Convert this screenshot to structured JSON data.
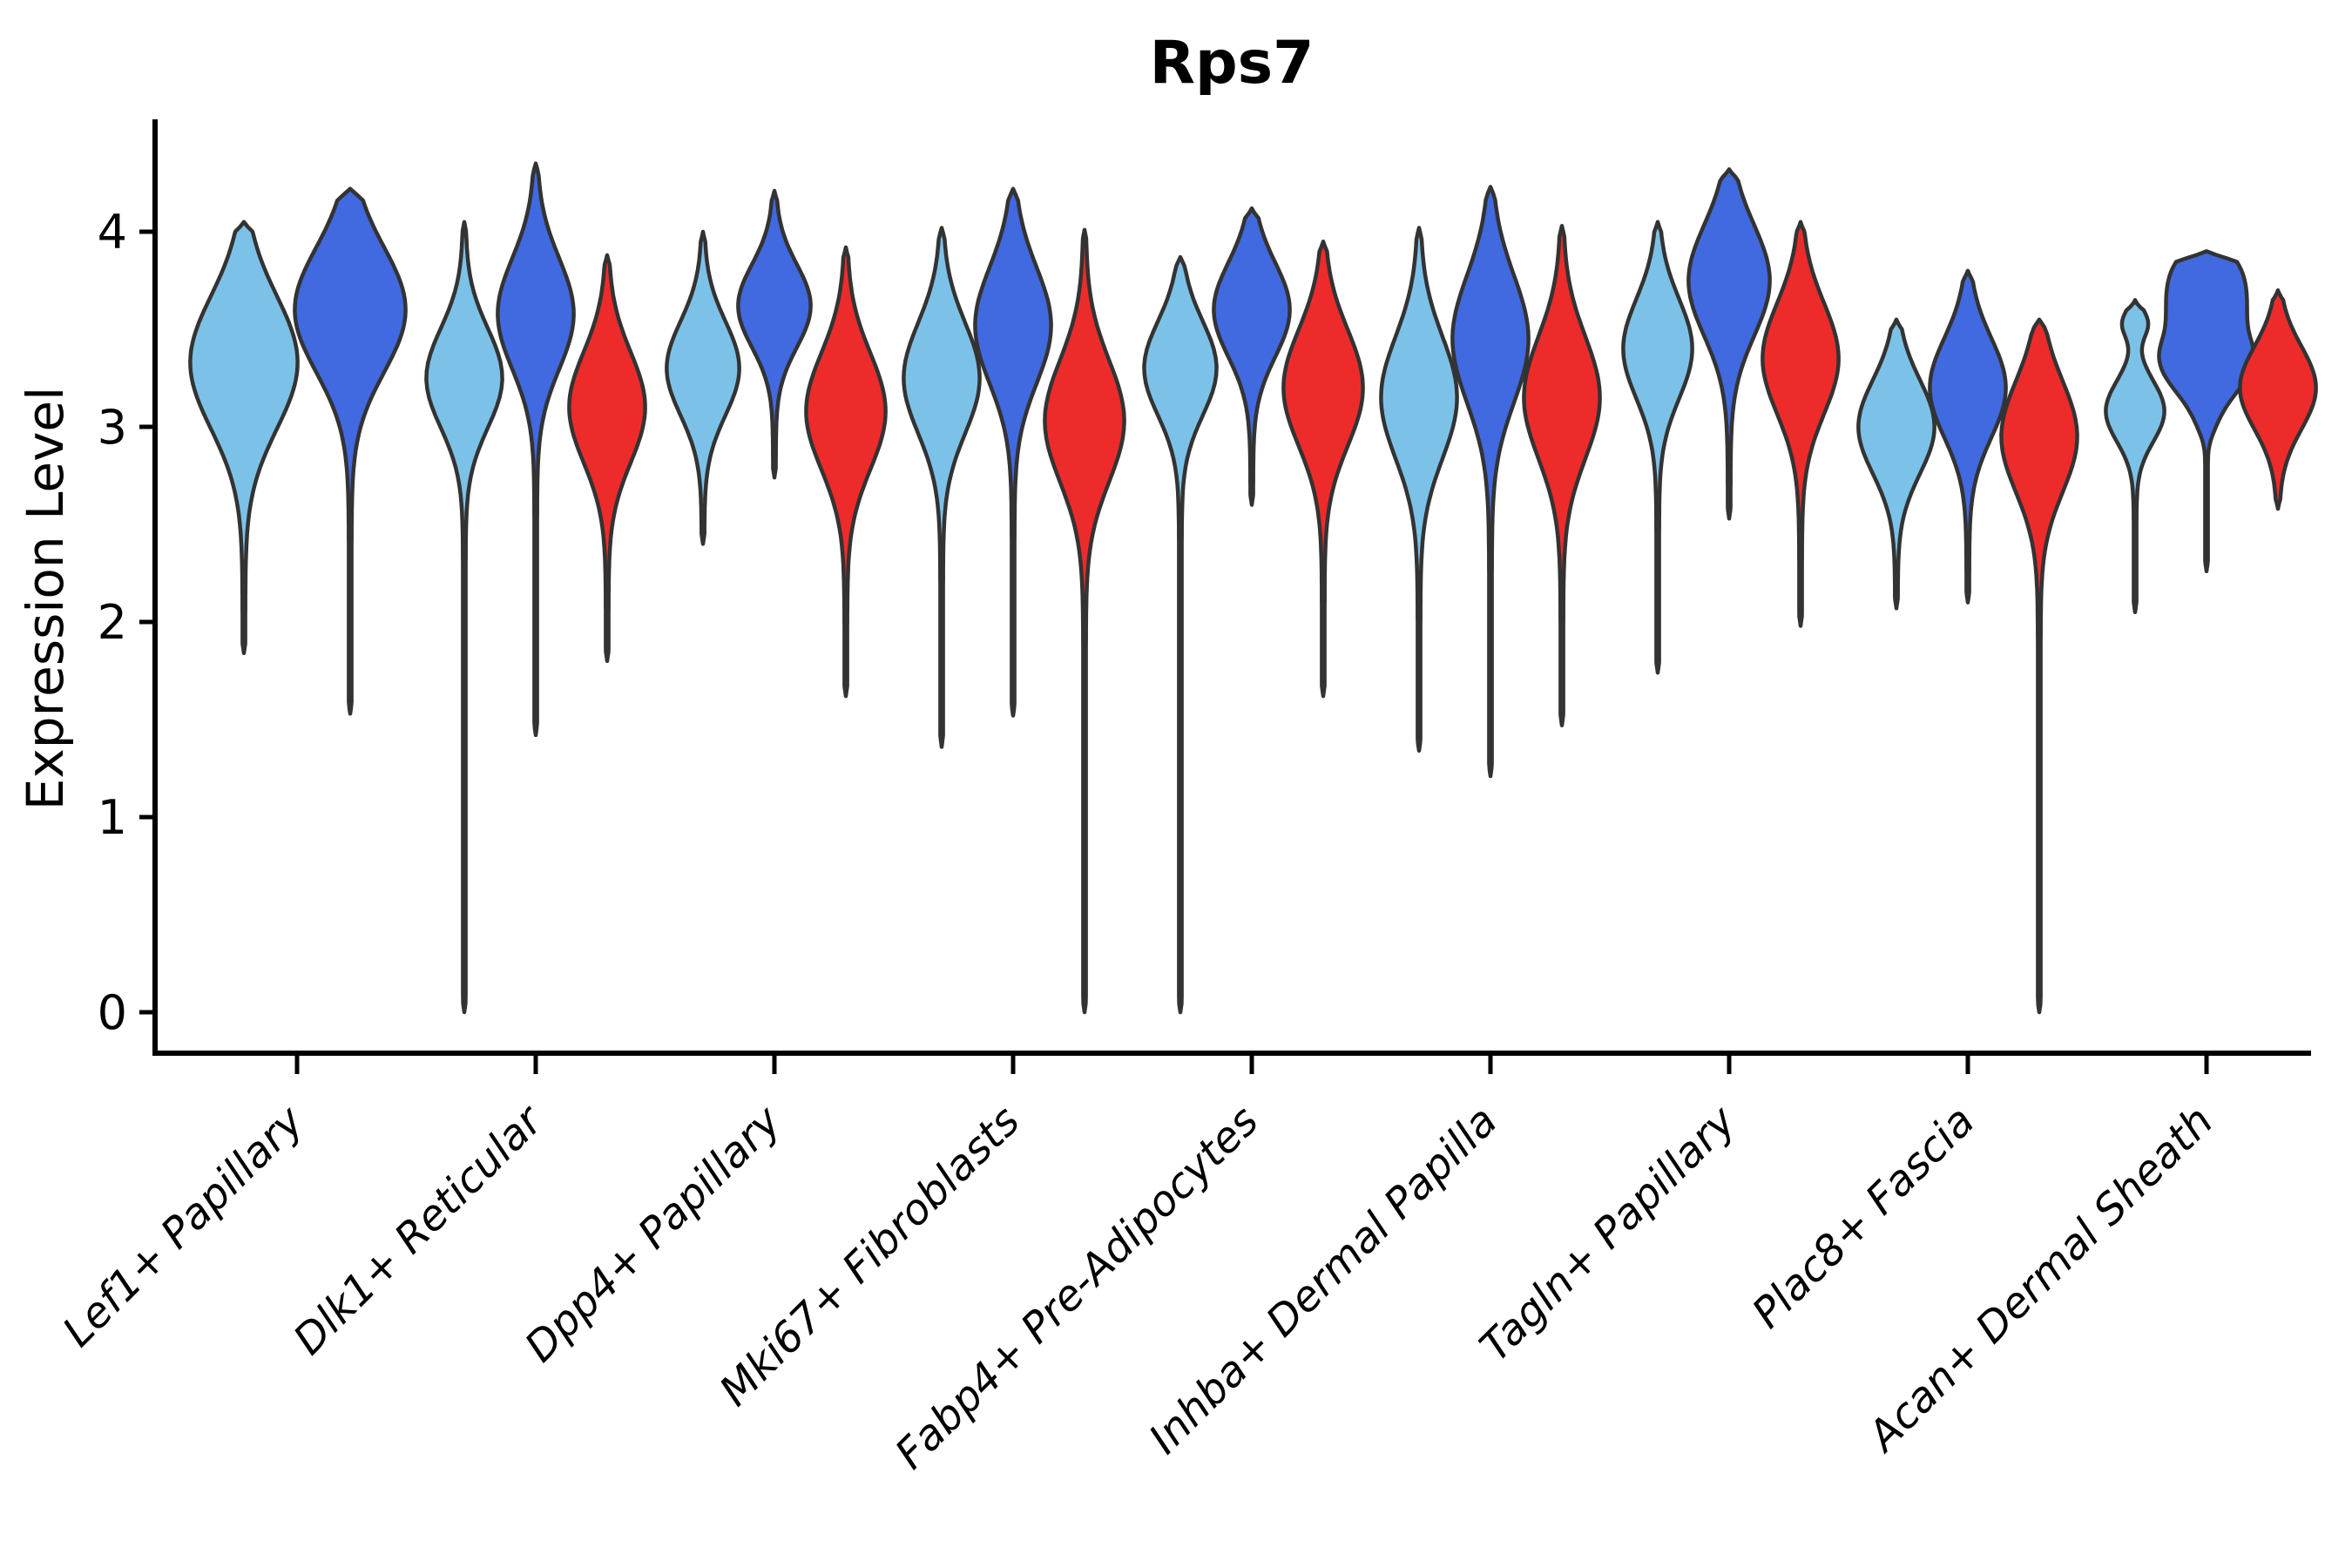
{
  "chart_data": {
    "type": "violin",
    "title": "Rps7",
    "ylabel": "Expression Level",
    "xlabel": "",
    "y_ticks": [
      0,
      1,
      2,
      3,
      4
    ],
    "ylim": [
      -0.2,
      4.45
    ],
    "grid": false,
    "legend_position": "none",
    "colors": {
      "light_blue": "#7CC2E8",
      "dark_blue": "#4169E0",
      "red": "#EE2B2B",
      "outline": "#333333",
      "axis": "#000000"
    },
    "categories": [
      "Lef1+ Papillary",
      "Dlk1+ Reticular",
      "Dpp4+ Papillary",
      "Mki67+ Fibroblasts",
      "Fabp4+ Pre-Adipocytes",
      "Inhba+ Dermal Papilla",
      "Tagln+ Papillary",
      "Plac8+ Fascia",
      "Acan+ Dermal Sheath"
    ],
    "violins": [
      {
        "category": 0,
        "series": "light_blue",
        "max": 4.05,
        "min": 1.84,
        "bumps": [
          {
            "v": 3.33,
            "s": 0.48,
            "w": 60
          }
        ]
      },
      {
        "category": 0,
        "series": "dark_blue",
        "max": 4.22,
        "min": 1.53,
        "bumps": [
          {
            "v": 3.6,
            "s": 0.45,
            "w": 62
          }
        ]
      },
      {
        "category": 1,
        "series": "light_blue",
        "max": 4.05,
        "min": 0.0,
        "bumps": [
          {
            "v": 3.25,
            "s": 0.36,
            "w": 42
          }
        ]
      },
      {
        "category": 1,
        "series": "dark_blue",
        "max": 4.35,
        "min": 1.42,
        "bumps": [
          {
            "v": 3.58,
            "s": 0.4,
            "w": 42
          }
        ]
      },
      {
        "category": 1,
        "series": "red",
        "max": 3.88,
        "min": 1.8,
        "bumps": [
          {
            "v": 3.1,
            "s": 0.4,
            "w": 42
          }
        ]
      },
      {
        "category": 2,
        "series": "light_blue",
        "max": 4.0,
        "min": 2.4,
        "bumps": [
          {
            "v": 3.3,
            "s": 0.34,
            "w": 40
          }
        ]
      },
      {
        "category": 2,
        "series": "dark_blue",
        "max": 4.21,
        "min": 2.74,
        "bumps": [
          {
            "v": 3.62,
            "s": 0.3,
            "w": 40
          }
        ]
      },
      {
        "category": 2,
        "series": "red",
        "max": 3.92,
        "min": 1.62,
        "bumps": [
          {
            "v": 3.08,
            "s": 0.42,
            "w": 44
          }
        ]
      },
      {
        "category": 3,
        "series": "light_blue",
        "max": 4.02,
        "min": 1.36,
        "bumps": [
          {
            "v": 3.25,
            "s": 0.4,
            "w": 42
          }
        ]
      },
      {
        "category": 3,
        "series": "dark_blue",
        "max": 4.22,
        "min": 1.52,
        "bumps": [
          {
            "v": 3.52,
            "s": 0.42,
            "w": 42
          }
        ]
      },
      {
        "category": 3,
        "series": "red",
        "max": 4.01,
        "min": 0.0,
        "bumps": [
          {
            "v": 3.03,
            "s": 0.44,
            "w": 44
          }
        ]
      },
      {
        "category": 4,
        "series": "light_blue",
        "max": 3.87,
        "min": 0.0,
        "bumps": [
          {
            "v": 3.3,
            "s": 0.34,
            "w": 40
          }
        ]
      },
      {
        "category": 4,
        "series": "dark_blue",
        "max": 4.12,
        "min": 2.6,
        "bumps": [
          {
            "v": 3.6,
            "s": 0.34,
            "w": 42
          }
        ]
      },
      {
        "category": 4,
        "series": "red",
        "max": 3.95,
        "min": 1.62,
        "bumps": [
          {
            "v": 3.2,
            "s": 0.42,
            "w": 44
          }
        ]
      },
      {
        "category": 5,
        "series": "light_blue",
        "max": 4.02,
        "min": 1.34,
        "bumps": [
          {
            "v": 3.15,
            "s": 0.44,
            "w": 42
          }
        ]
      },
      {
        "category": 5,
        "series": "dark_blue",
        "max": 4.23,
        "min": 1.21,
        "bumps": [
          {
            "v": 3.45,
            "s": 0.46,
            "w": 42
          }
        ]
      },
      {
        "category": 5,
        "series": "red",
        "max": 4.03,
        "min": 1.47,
        "bumps": [
          {
            "v": 3.15,
            "s": 0.44,
            "w": 42
          }
        ]
      },
      {
        "category": 6,
        "series": "light_blue",
        "max": 4.05,
        "min": 1.74,
        "bumps": [
          {
            "v": 3.4,
            "s": 0.36,
            "w": 38
          }
        ]
      },
      {
        "category": 6,
        "series": "dark_blue",
        "max": 4.32,
        "min": 2.53,
        "bumps": [
          {
            "v": 3.75,
            "s": 0.4,
            "w": 45
          }
        ]
      },
      {
        "category": 6,
        "series": "red",
        "max": 4.05,
        "min": 1.98,
        "bumps": [
          {
            "v": 3.35,
            "s": 0.4,
            "w": 42
          }
        ]
      },
      {
        "category": 7,
        "series": "light_blue",
        "max": 3.55,
        "min": 2.07,
        "bumps": [
          {
            "v": 3.0,
            "s": 0.34,
            "w": 42
          }
        ]
      },
      {
        "category": 7,
        "series": "dark_blue",
        "max": 3.8,
        "min": 2.1,
        "bumps": [
          {
            "v": 3.2,
            "s": 0.36,
            "w": 42
          }
        ]
      },
      {
        "category": 7,
        "series": "red",
        "max": 3.55,
        "min": 0.0,
        "bumps": [
          {
            "v": 2.95,
            "s": 0.4,
            "w": 42
          }
        ]
      },
      {
        "category": 8,
        "series": "light_blue",
        "max": 3.65,
        "min": 2.05,
        "bumps": [
          {
            "v": 3.08,
            "s": 0.22,
            "w": 32
          },
          {
            "v": 3.53,
            "s": 0.1,
            "w": 13
          }
        ]
      },
      {
        "category": 8,
        "series": "dark_blue",
        "max": 3.9,
        "min": 2.26,
        "pow": 4,
        "bumps": [
          {
            "v": 3.55,
            "s": 0.4,
            "w": 45
          },
          {
            "v": 3.2,
            "s": 0.25,
            "w": 12
          }
        ]
      },
      {
        "category": 8,
        "series": "red",
        "max": 3.7,
        "min": 2.58,
        "bumps": [
          {
            "v": 3.2,
            "s": 0.3,
            "w": 42
          }
        ]
      }
    ]
  }
}
